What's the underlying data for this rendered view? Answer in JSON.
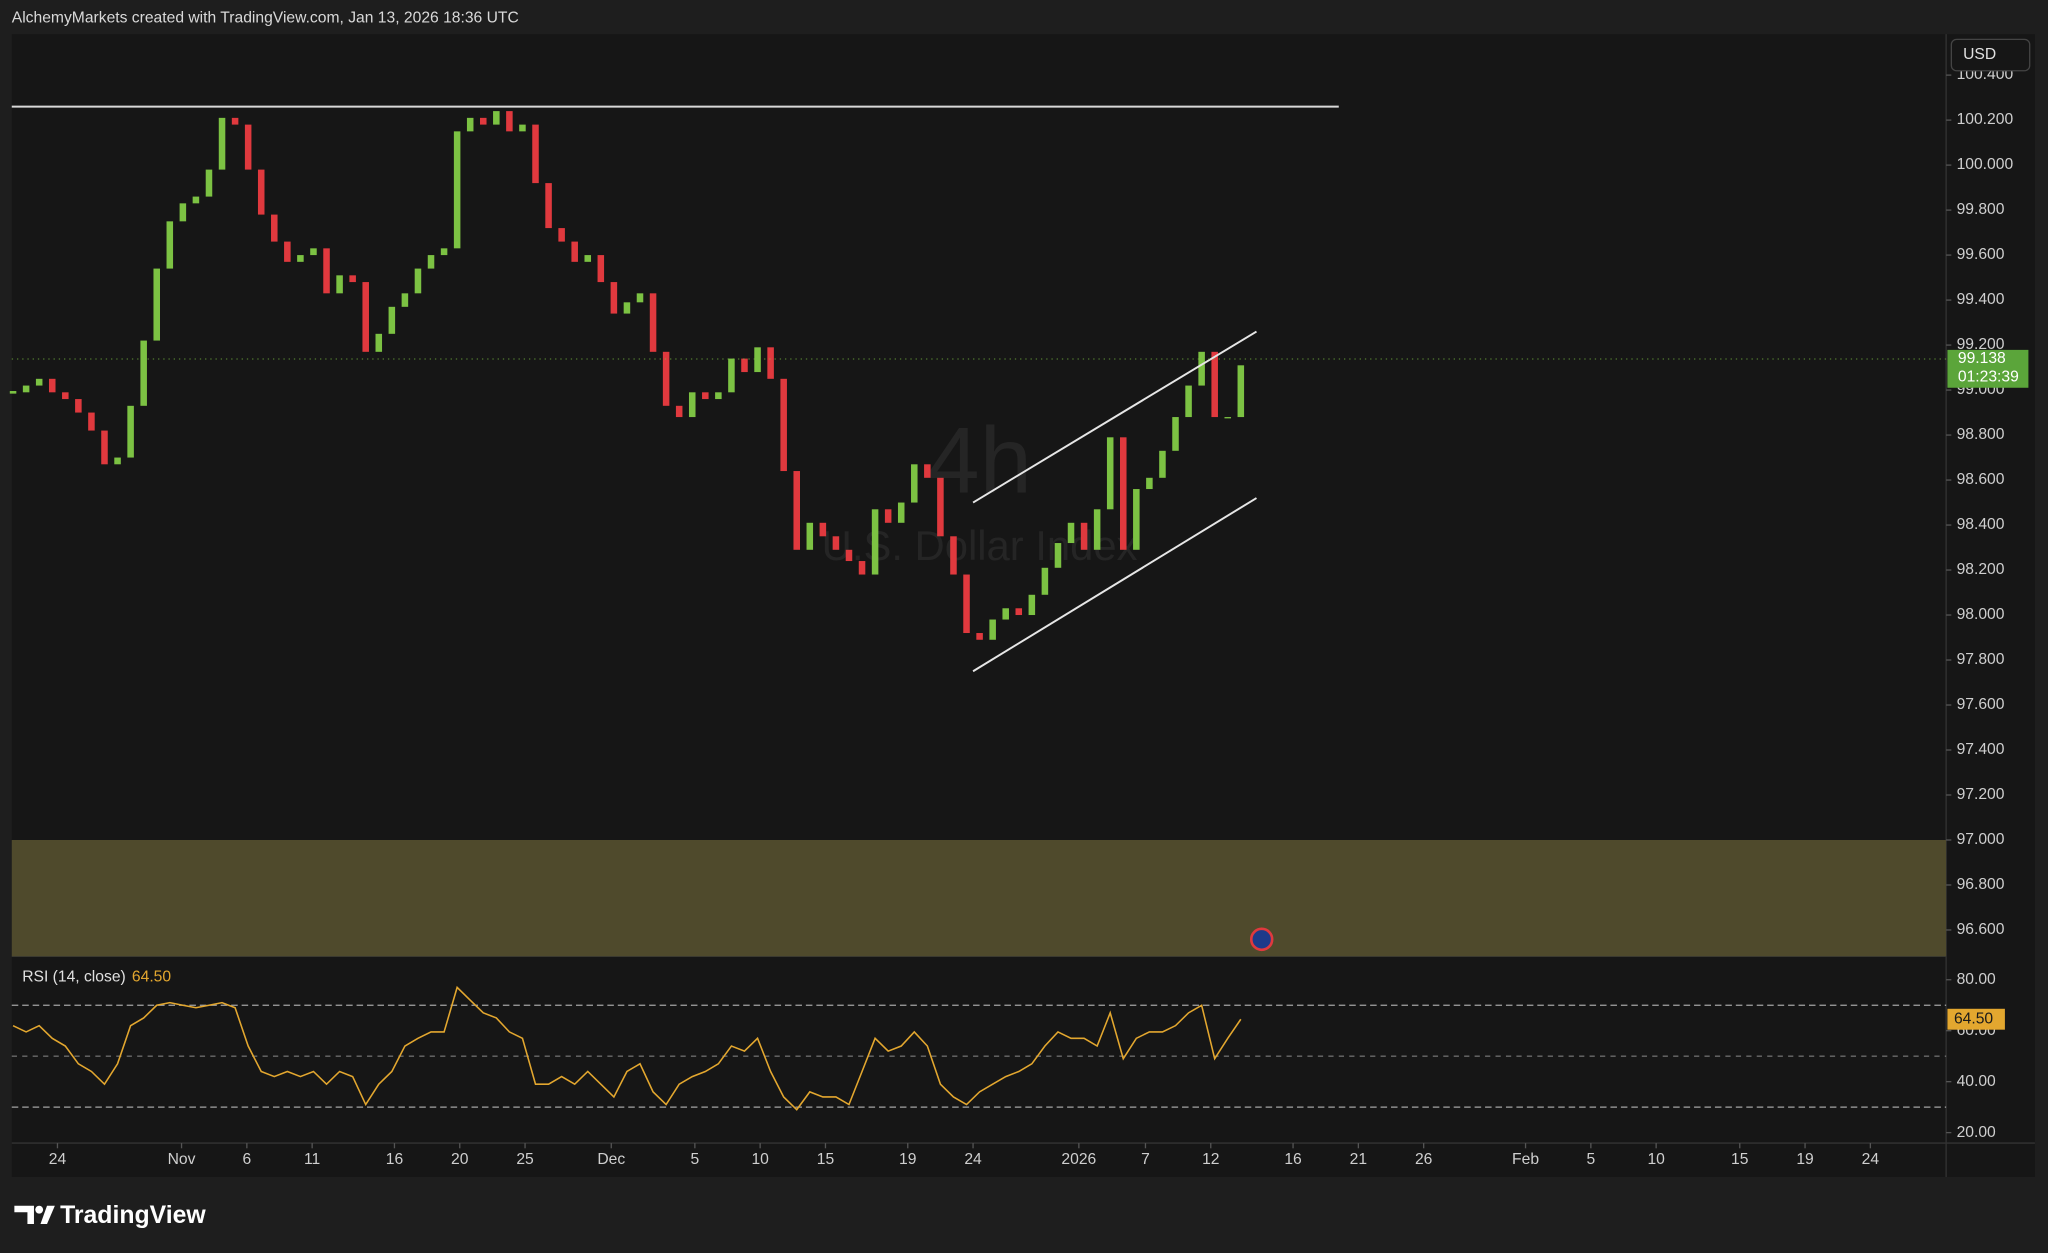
{
  "header": "AlchemyMarkets created with TradingView.com, Jan 13, 2026 18:36 UTC",
  "currency": "USD",
  "logo": "TradingView",
  "chart_data": [
    {
      "type": "candlestick",
      "watermark_interval": "4h",
      "watermark_symbol": "U.S. Dollar Index",
      "up_color": "#7cc243",
      "down_color": "#e0393e",
      "xlim": [
        -0.1,
        148
      ],
      "ylim": [
        96.483,
        100.582
      ],
      "yticks": [
        {
          "value": 100.4,
          "label": "100.400"
        },
        {
          "value": 100.2,
          "label": "100.200"
        },
        {
          "value": 100.0,
          "label": "100.000"
        },
        {
          "value": 99.8,
          "label": "99.800"
        },
        {
          "value": 99.6,
          "label": "99.600"
        },
        {
          "value": 99.4,
          "label": "99.400"
        },
        {
          "value": 99.2,
          "label": "99.200"
        },
        {
          "value": 99.0,
          "label": "99.000"
        },
        {
          "value": 98.8,
          "label": "98.800"
        },
        {
          "value": 98.6,
          "label": "98.600"
        },
        {
          "value": 98.4,
          "label": "98.400"
        },
        {
          "value": 98.2,
          "label": "98.200"
        },
        {
          "value": 98.0,
          "label": "98.000"
        },
        {
          "value": 97.8,
          "label": "97.800"
        },
        {
          "value": 97.6,
          "label": "97.600"
        },
        {
          "value": 97.4,
          "label": "97.400"
        },
        {
          "value": 97.2,
          "label": "97.200"
        },
        {
          "value": 97.0,
          "label": "97.000"
        },
        {
          "value": 96.8,
          "label": "96.800"
        },
        {
          "value": 96.6,
          "label": "96.600"
        }
      ],
      "values": [
        98.99,
        99.02,
        99.05,
        98.99,
        98.96,
        98.9,
        98.82,
        98.67,
        98.7,
        98.93,
        99.22,
        99.54,
        99.75,
        99.83,
        99.86,
        99.98,
        100.21,
        100.18,
        99.98,
        99.78,
        99.66,
        99.57,
        99.6,
        99.63,
        99.43,
        99.51,
        99.48,
        99.17,
        99.25,
        99.37,
        99.43,
        99.54,
        99.6,
        99.63,
        100.15,
        100.21,
        100.18,
        100.24,
        100.15,
        100.18,
        99.92,
        99.72,
        99.66,
        99.57,
        99.6,
        99.48,
        99.34,
        99.39,
        99.43,
        99.17,
        98.93,
        98.88,
        98.99,
        98.96,
        98.99,
        99.14,
        99.08,
        99.19,
        99.05,
        98.64,
        98.29,
        98.41,
        98.35,
        98.29,
        98.24,
        98.18,
        98.47,
        98.41,
        98.5,
        98.67,
        98.61,
        98.35,
        98.18,
        97.92,
        97.89,
        97.98,
        98.03,
        98.0,
        98.09,
        98.21,
        98.32,
        98.41,
        98.29,
        98.47,
        98.79,
        98.29,
        98.56,
        98.61,
        98.73,
        98.88,
        99.02,
        99.17,
        98.88,
        98.88,
        99.11
      ],
      "last_price": 99.138,
      "countdown": "01:23:39",
      "hline": {
        "value": 100.26,
        "x": [
          -0.1,
          101.5
        ]
      },
      "channel": [
        {
          "x": [
            73.5,
            95.2
          ],
          "y": [
            98.5,
            99.26
          ]
        },
        {
          "x": [
            73.5,
            95.2
          ],
          "y": [
            97.75,
            98.52
          ]
        }
      ],
      "zone": [
        96.483,
        97.0
      ],
      "zone_color": "#4f4a2c"
    },
    {
      "type": "line",
      "title": "RSI (14, close)",
      "color": "#e3a72f",
      "xlim": [
        -0.1,
        148
      ],
      "ylim": [
        15.9,
        89.2
      ],
      "yticks": [
        {
          "value": 80,
          "label": "80.00"
        },
        {
          "value": 60,
          "label": "60.00"
        },
        {
          "value": 40,
          "label": "40.00"
        },
        {
          "value": 20,
          "label": "20.00"
        }
      ],
      "levels": [
        70,
        50,
        30
      ],
      "values": [
        62,
        59.5,
        62,
        57,
        54,
        47,
        44,
        39,
        47,
        62,
        65,
        70,
        71,
        70,
        69,
        70,
        71,
        69,
        54,
        44,
        42,
        44,
        42,
        44,
        39,
        44,
        42,
        31,
        39,
        44,
        54,
        57,
        59.5,
        59.5,
        77,
        72,
        67,
        65,
        59.5,
        57,
        39,
        39,
        42,
        39,
        44,
        39,
        34,
        44,
        47,
        36,
        31,
        39,
        42,
        44,
        47,
        54,
        52,
        57,
        44,
        34,
        29,
        36,
        34,
        34,
        31,
        44,
        57,
        52,
        54,
        59.5,
        54,
        39,
        34,
        31,
        36,
        39,
        42,
        44,
        47,
        54,
        59.5,
        57,
        57,
        54,
        67,
        49,
        57,
        59.5,
        59.5,
        62,
        67,
        70,
        49,
        57,
        64.5
      ],
      "last_value": {
        "value": 64.5,
        "label": "64.50"
      },
      "xticks": [
        {
          "value": 3.4,
          "label": "24"
        },
        {
          "value": 12.9,
          "label": "Nov"
        },
        {
          "value": 17.9,
          "label": "6"
        },
        {
          "value": 22.9,
          "label": "11"
        },
        {
          "value": 29.2,
          "label": "16"
        },
        {
          "value": 34.2,
          "label": "20"
        },
        {
          "value": 39.2,
          "label": "25"
        },
        {
          "value": 45.8,
          "label": "Dec"
        },
        {
          "value": 52.2,
          "label": "5"
        },
        {
          "value": 57.2,
          "label": "10"
        },
        {
          "value": 62.2,
          "label": "15"
        },
        {
          "value": 68.5,
          "label": "19"
        },
        {
          "value": 73.5,
          "label": "24"
        },
        {
          "value": 81.6,
          "label": "2026"
        },
        {
          "value": 86.7,
          "label": "7"
        },
        {
          "value": 91.7,
          "label": "12"
        },
        {
          "value": 98,
          "label": "16"
        },
        {
          "value": 103,
          "label": "21"
        },
        {
          "value": 108,
          "label": "26"
        },
        {
          "value": 115.8,
          "label": "Feb"
        },
        {
          "value": 120.8,
          "label": "5"
        },
        {
          "value": 125.8,
          "label": "10"
        },
        {
          "value": 132.2,
          "label": "15"
        },
        {
          "value": 137.2,
          "label": "19"
        },
        {
          "value": 142.2,
          "label": "24"
        }
      ]
    }
  ]
}
